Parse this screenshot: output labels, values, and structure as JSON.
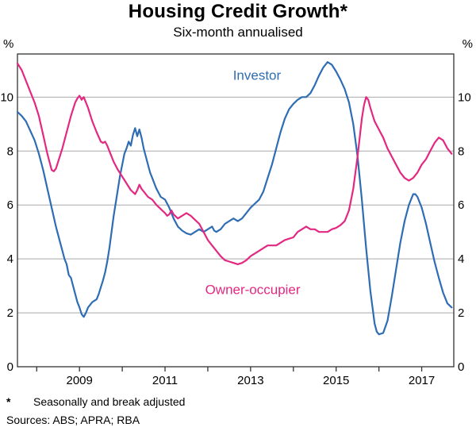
{
  "chart_data": {
    "type": "line",
    "title": "Housing Credit Growth*",
    "subtitle": "Six-month annualised",
    "y_unit": "%",
    "ylim": [
      0,
      11.6
    ],
    "yticks": [
      0,
      2,
      4,
      6,
      8,
      10
    ],
    "xlim": [
      2007.55,
      2017.75
    ],
    "xticks": [
      2008,
      2009,
      2010,
      2011,
      2012,
      2013,
      2014,
      2015,
      2016,
      2017
    ],
    "xtick_labels": [
      {
        "x": 2009,
        "label": "2009"
      },
      {
        "x": 2011,
        "label": "2011"
      },
      {
        "x": 2013,
        "label": "2013"
      },
      {
        "x": 2015,
        "label": "2015"
      },
      {
        "x": 2017,
        "label": "2017"
      }
    ],
    "grid": true,
    "grid_color": "#a9a9a9",
    "frame_color": "#333333",
    "legend_position": "inline-labels",
    "series": [
      {
        "name": "Investor",
        "color": "#2e6db4",
        "points": [
          [
            2007.55,
            9.45
          ],
          [
            2007.65,
            9.3
          ],
          [
            2007.75,
            9.1
          ],
          [
            2007.85,
            8.75
          ],
          [
            2007.95,
            8.4
          ],
          [
            2008.05,
            7.9
          ],
          [
            2008.15,
            7.3
          ],
          [
            2008.25,
            6.6
          ],
          [
            2008.35,
            5.9
          ],
          [
            2008.45,
            5.2
          ],
          [
            2008.55,
            4.6
          ],
          [
            2008.6,
            4.3
          ],
          [
            2008.65,
            4.0
          ],
          [
            2008.7,
            3.8
          ],
          [
            2008.75,
            3.4
          ],
          [
            2008.8,
            3.3
          ],
          [
            2008.85,
            3.0
          ],
          [
            2008.9,
            2.7
          ],
          [
            2008.95,
            2.4
          ],
          [
            2009.0,
            2.2
          ],
          [
            2009.05,
            1.95
          ],
          [
            2009.1,
            1.85
          ],
          [
            2009.15,
            2.0
          ],
          [
            2009.2,
            2.2
          ],
          [
            2009.25,
            2.3
          ],
          [
            2009.3,
            2.4
          ],
          [
            2009.35,
            2.45
          ],
          [
            2009.4,
            2.5
          ],
          [
            2009.45,
            2.7
          ],
          [
            2009.5,
            2.95
          ],
          [
            2009.55,
            3.2
          ],
          [
            2009.6,
            3.5
          ],
          [
            2009.65,
            3.9
          ],
          [
            2009.7,
            4.4
          ],
          [
            2009.75,
            5.0
          ],
          [
            2009.8,
            5.6
          ],
          [
            2009.85,
            6.1
          ],
          [
            2009.9,
            6.6
          ],
          [
            2009.95,
            7.1
          ],
          [
            2010.0,
            7.5
          ],
          [
            2010.05,
            7.9
          ],
          [
            2010.1,
            8.1
          ],
          [
            2010.15,
            8.35
          ],
          [
            2010.2,
            8.2
          ],
          [
            2010.25,
            8.6
          ],
          [
            2010.3,
            8.85
          ],
          [
            2010.35,
            8.55
          ],
          [
            2010.4,
            8.8
          ],
          [
            2010.45,
            8.5
          ],
          [
            2010.5,
            8.1
          ],
          [
            2010.55,
            7.8
          ],
          [
            2010.6,
            7.5
          ],
          [
            2010.65,
            7.2
          ],
          [
            2010.7,
            7.0
          ],
          [
            2010.75,
            6.8
          ],
          [
            2010.8,
            6.6
          ],
          [
            2010.85,
            6.45
          ],
          [
            2010.9,
            6.3
          ],
          [
            2011.0,
            6.2
          ],
          [
            2011.05,
            6.05
          ],
          [
            2011.1,
            5.9
          ],
          [
            2011.15,
            5.7
          ],
          [
            2011.2,
            5.5
          ],
          [
            2011.25,
            5.35
          ],
          [
            2011.3,
            5.2
          ],
          [
            2011.4,
            5.05
          ],
          [
            2011.5,
            4.95
          ],
          [
            2011.6,
            4.9
          ],
          [
            2011.7,
            5.0
          ],
          [
            2011.8,
            5.1
          ],
          [
            2011.9,
            5.0
          ],
          [
            2012.0,
            5.1
          ],
          [
            2012.1,
            5.2
          ],
          [
            2012.15,
            5.05
          ],
          [
            2012.2,
            5.0
          ],
          [
            2012.3,
            5.1
          ],
          [
            2012.4,
            5.3
          ],
          [
            2012.5,
            5.4
          ],
          [
            2012.6,
            5.5
          ],
          [
            2012.7,
            5.4
          ],
          [
            2012.8,
            5.5
          ],
          [
            2012.9,
            5.7
          ],
          [
            2013.0,
            5.9
          ],
          [
            2013.1,
            6.05
          ],
          [
            2013.2,
            6.2
          ],
          [
            2013.3,
            6.5
          ],
          [
            2013.4,
            7.0
          ],
          [
            2013.5,
            7.5
          ],
          [
            2013.6,
            8.1
          ],
          [
            2013.7,
            8.7
          ],
          [
            2013.8,
            9.2
          ],
          [
            2013.9,
            9.55
          ],
          [
            2014.0,
            9.75
          ],
          [
            2014.1,
            9.9
          ],
          [
            2014.2,
            10.0
          ],
          [
            2014.3,
            10.0
          ],
          [
            2014.4,
            10.15
          ],
          [
            2014.5,
            10.45
          ],
          [
            2014.6,
            10.8
          ],
          [
            2014.7,
            11.1
          ],
          [
            2014.8,
            11.3
          ],
          [
            2014.9,
            11.2
          ],
          [
            2015.0,
            10.95
          ],
          [
            2015.1,
            10.65
          ],
          [
            2015.2,
            10.3
          ],
          [
            2015.3,
            9.8
          ],
          [
            2015.4,
            9.0
          ],
          [
            2015.5,
            7.8
          ],
          [
            2015.6,
            6.2
          ],
          [
            2015.7,
            4.4
          ],
          [
            2015.8,
            2.8
          ],
          [
            2015.9,
            1.6
          ],
          [
            2015.95,
            1.3
          ],
          [
            2016.0,
            1.2
          ],
          [
            2016.1,
            1.25
          ],
          [
            2016.2,
            1.7
          ],
          [
            2016.3,
            2.6
          ],
          [
            2016.4,
            3.6
          ],
          [
            2016.5,
            4.6
          ],
          [
            2016.6,
            5.4
          ],
          [
            2016.7,
            6.0
          ],
          [
            2016.8,
            6.4
          ],
          [
            2016.85,
            6.4
          ],
          [
            2016.9,
            6.3
          ],
          [
            2017.0,
            5.9
          ],
          [
            2017.1,
            5.3
          ],
          [
            2017.2,
            4.6
          ],
          [
            2017.3,
            3.9
          ],
          [
            2017.4,
            3.3
          ],
          [
            2017.5,
            2.75
          ],
          [
            2017.6,
            2.35
          ],
          [
            2017.7,
            2.2
          ]
        ]
      },
      {
        "name": "Owner-occupier",
        "color": "#e32882",
        "points": [
          [
            2007.55,
            11.25
          ],
          [
            2007.65,
            11.0
          ],
          [
            2007.75,
            10.6
          ],
          [
            2007.85,
            10.2
          ],
          [
            2007.95,
            9.8
          ],
          [
            2008.05,
            9.3
          ],
          [
            2008.15,
            8.6
          ],
          [
            2008.25,
            7.9
          ],
          [
            2008.3,
            7.6
          ],
          [
            2008.35,
            7.3
          ],
          [
            2008.4,
            7.25
          ],
          [
            2008.45,
            7.35
          ],
          [
            2008.5,
            7.6
          ],
          [
            2008.6,
            8.1
          ],
          [
            2008.7,
            8.7
          ],
          [
            2008.8,
            9.3
          ],
          [
            2008.9,
            9.8
          ],
          [
            2008.95,
            9.95
          ],
          [
            2009.0,
            10.05
          ],
          [
            2009.05,
            9.9
          ],
          [
            2009.1,
            10.0
          ],
          [
            2009.15,
            9.8
          ],
          [
            2009.2,
            9.6
          ],
          [
            2009.3,
            9.1
          ],
          [
            2009.4,
            8.7
          ],
          [
            2009.5,
            8.35
          ],
          [
            2009.55,
            8.3
          ],
          [
            2009.6,
            8.35
          ],
          [
            2009.65,
            8.2
          ],
          [
            2009.7,
            8.0
          ],
          [
            2009.8,
            7.6
          ],
          [
            2009.9,
            7.3
          ],
          [
            2010.0,
            7.05
          ],
          [
            2010.1,
            6.8
          ],
          [
            2010.2,
            6.55
          ],
          [
            2010.3,
            6.4
          ],
          [
            2010.35,
            6.55
          ],
          [
            2010.4,
            6.75
          ],
          [
            2010.45,
            6.6
          ],
          [
            2010.5,
            6.5
          ],
          [
            2010.6,
            6.3
          ],
          [
            2010.7,
            6.2
          ],
          [
            2010.8,
            6.0
          ],
          [
            2010.9,
            5.85
          ],
          [
            2011.0,
            5.7
          ],
          [
            2011.05,
            5.6
          ],
          [
            2011.1,
            5.65
          ],
          [
            2011.15,
            5.8
          ],
          [
            2011.2,
            5.65
          ],
          [
            2011.3,
            5.5
          ],
          [
            2011.4,
            5.6
          ],
          [
            2011.5,
            5.7
          ],
          [
            2011.6,
            5.6
          ],
          [
            2011.7,
            5.45
          ],
          [
            2011.8,
            5.3
          ],
          [
            2011.9,
            5.0
          ],
          [
            2012.0,
            4.7
          ],
          [
            2012.1,
            4.5
          ],
          [
            2012.2,
            4.3
          ],
          [
            2012.3,
            4.1
          ],
          [
            2012.4,
            3.95
          ],
          [
            2012.5,
            3.9
          ],
          [
            2012.6,
            3.85
          ],
          [
            2012.7,
            3.8
          ],
          [
            2012.8,
            3.85
          ],
          [
            2012.9,
            3.95
          ],
          [
            2013.0,
            4.1
          ],
          [
            2013.1,
            4.2
          ],
          [
            2013.2,
            4.3
          ],
          [
            2013.3,
            4.4
          ],
          [
            2013.4,
            4.5
          ],
          [
            2013.5,
            4.5
          ],
          [
            2013.6,
            4.5
          ],
          [
            2013.7,
            4.6
          ],
          [
            2013.8,
            4.7
          ],
          [
            2013.9,
            4.75
          ],
          [
            2014.0,
            4.8
          ],
          [
            2014.1,
            5.0
          ],
          [
            2014.2,
            5.1
          ],
          [
            2014.3,
            5.2
          ],
          [
            2014.4,
            5.1
          ],
          [
            2014.5,
            5.1
          ],
          [
            2014.6,
            5.0
          ],
          [
            2014.7,
            5.0
          ],
          [
            2014.8,
            5.0
          ],
          [
            2014.9,
            5.1
          ],
          [
            2015.0,
            5.15
          ],
          [
            2015.1,
            5.25
          ],
          [
            2015.2,
            5.4
          ],
          [
            2015.3,
            5.8
          ],
          [
            2015.4,
            6.6
          ],
          [
            2015.5,
            7.8
          ],
          [
            2015.6,
            9.2
          ],
          [
            2015.65,
            9.7
          ],
          [
            2015.7,
            10.0
          ],
          [
            2015.75,
            9.9
          ],
          [
            2015.8,
            9.6
          ],
          [
            2015.9,
            9.1
          ],
          [
            2016.0,
            8.8
          ],
          [
            2016.1,
            8.5
          ],
          [
            2016.2,
            8.1
          ],
          [
            2016.3,
            7.8
          ],
          [
            2016.4,
            7.5
          ],
          [
            2016.5,
            7.2
          ],
          [
            2016.6,
            7.0
          ],
          [
            2016.7,
            6.9
          ],
          [
            2016.8,
            7.0
          ],
          [
            2016.9,
            7.2
          ],
          [
            2017.0,
            7.5
          ],
          [
            2017.1,
            7.7
          ],
          [
            2017.2,
            8.0
          ],
          [
            2017.3,
            8.3
          ],
          [
            2017.4,
            8.5
          ],
          [
            2017.5,
            8.4
          ],
          [
            2017.6,
            8.1
          ],
          [
            2017.7,
            7.9
          ]
        ]
      }
    ],
    "annotations": [
      {
        "text": "Investor",
        "x": 2013.15,
        "y": 10.65,
        "color": "#2e6db4"
      },
      {
        "text": "Owner-occupier",
        "x": 2013.05,
        "y": 2.7,
        "color": "#e32882"
      }
    ]
  },
  "footnote": {
    "marker": "*",
    "text": "Seasonally and break adjusted",
    "sources": "Sources: ABS; APRA; RBA"
  }
}
